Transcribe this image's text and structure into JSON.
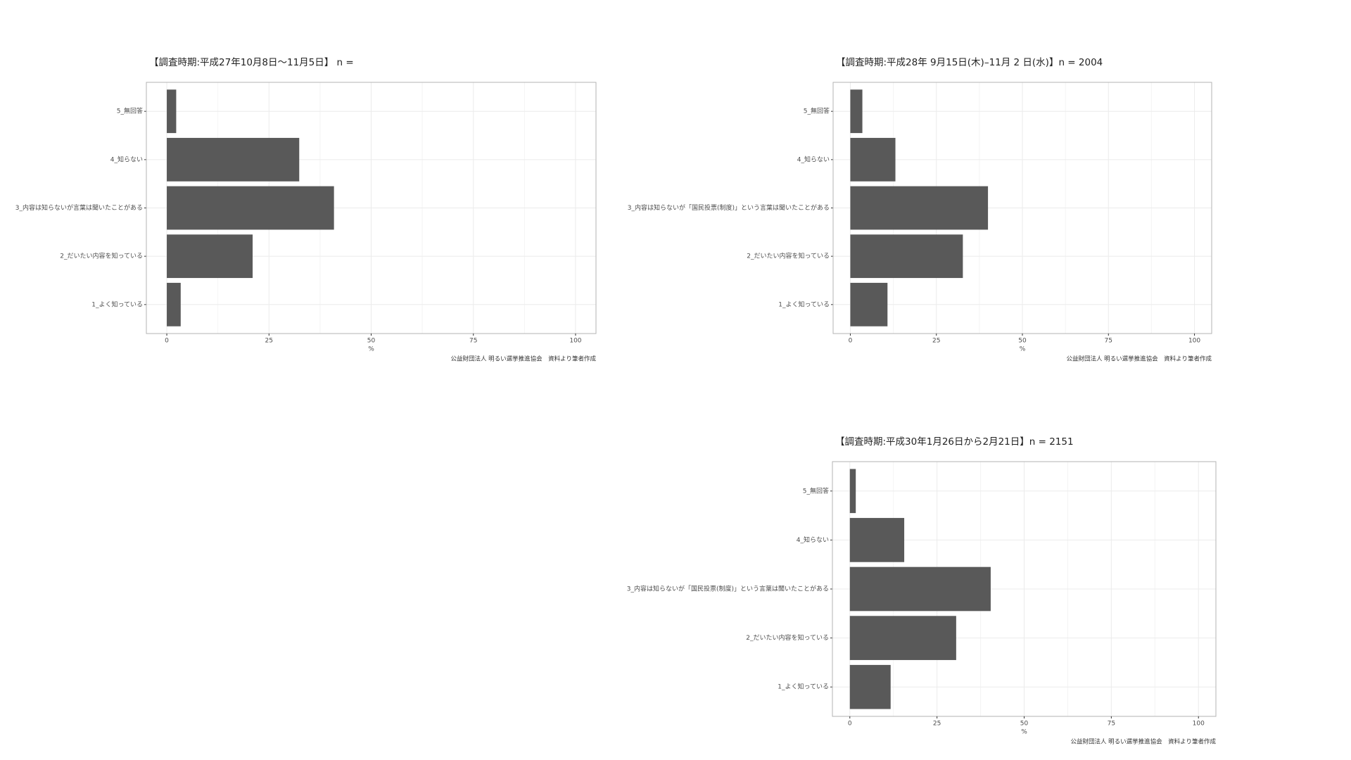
{
  "chart_data": [
    {
      "type": "bar",
      "orientation": "horizontal",
      "title": "【調査時期:平成27年10月8日〜11月5日】 n =",
      "categories": [
        "1_よく知っている",
        "2_だいたい内容を知っている",
        "3_内容は知らないが言葉は聞いたことがある",
        "4_知らない",
        "5_無回答"
      ],
      "values": [
        3.4,
        21.0,
        40.9,
        32.4,
        2.3
      ],
      "color": "#595959",
      "xlim": [
        -5,
        105
      ],
      "xticks": [
        0,
        25,
        50,
        75,
        100
      ],
      "xlabel": "%",
      "grid": true,
      "caption": "公益財団法人 明るい選挙推進協会　資料より筆者作成"
    },
    {
      "type": "bar",
      "orientation": "horizontal",
      "title": "【調査時期:平成28年 9月15日(木)–11月 2 日(水)】n = 2004",
      "categories": [
        "1_よく知っている",
        "2_だいたい内容を知っている",
        "3_内容は知らないが「国民投票(制度)」という言葉は聞いたことがある",
        "4_知らない",
        "5_無回答"
      ],
      "values": [
        10.8,
        32.7,
        40.0,
        13.1,
        3.5
      ],
      "color": "#595959",
      "xlim": [
        -5,
        105
      ],
      "xticks": [
        0,
        25,
        50,
        75,
        100
      ],
      "xlabel": "%",
      "grid": true,
      "caption": "公益財団法人 明るい選挙推進協会　資料より筆者作成"
    },
    {
      "type": "bar",
      "orientation": "horizontal",
      "title": "【調査時期:平成30年1月26日から2月21日】n = 2151",
      "categories": [
        "1_よく知っている",
        "2_だいたい内容を知っている",
        "3_内容は知らないが「国民投票(制度)」という言葉は聞いたことがある",
        "4_知らない",
        "5_無回答"
      ],
      "values": [
        11.7,
        30.5,
        40.4,
        15.6,
        1.7
      ],
      "color": "#595959",
      "xlim": [
        -5,
        105
      ],
      "xticks": [
        0,
        25,
        50,
        75,
        100
      ],
      "xlabel": "%",
      "grid": true,
      "caption": "公益財団法人 明るい選挙推進協会　資料より筆者作成"
    }
  ]
}
